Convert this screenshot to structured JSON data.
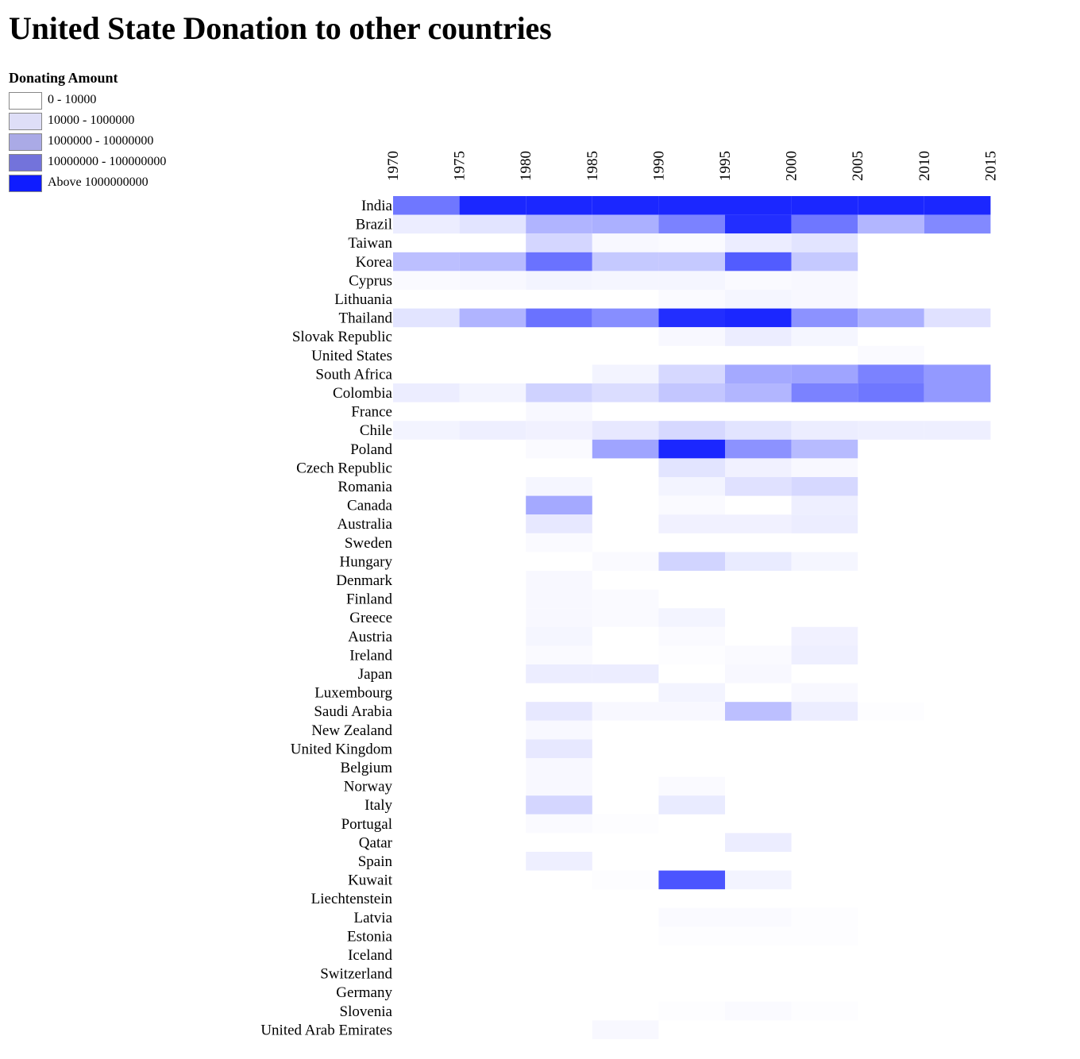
{
  "title": "United State Donation to other countries",
  "legend": {
    "title": "Donating Amount",
    "items": [
      {
        "label": "0 - 10000",
        "color": "#ffffff"
      },
      {
        "label": "10000 - 1000000",
        "color": "#dedef7"
      },
      {
        "label": "1000000 - 10000000",
        "color": "#aaaae6"
      },
      {
        "label": "10000000 - 100000000",
        "color": "#7373db"
      },
      {
        "label": "Above 1000000000",
        "color": "#0f1cff"
      }
    ]
  },
  "chart_data": {
    "type": "heatmap",
    "title": "United State Donation to other countries",
    "columns": [
      "1970",
      "1975",
      "1980",
      "1985",
      "1990",
      "1995",
      "2000",
      "2005",
      "2010",
      "2015"
    ],
    "rows": [
      "India",
      "Brazil",
      "Taiwan",
      "Korea",
      "Cyprus",
      "Lithuania",
      "Thailand",
      "Slovak Republic",
      "United States",
      "South Africa",
      "Colombia",
      "France",
      "Chile",
      "Poland",
      "Czech Republic",
      "Romania",
      "Canada",
      "Australia",
      "Sweden",
      "Hungary",
      "Denmark",
      "Finland",
      "Greece",
      "Austria",
      "Ireland",
      "Japan",
      "Luxembourg",
      "Saudi Arabia",
      "New Zealand",
      "United Kingdom",
      "Belgium",
      "Norway",
      "Italy",
      "Portugal",
      "Qatar",
      "Spain",
      "Kuwait",
      "Liechtenstein",
      "Latvia",
      "Estonia",
      "Iceland",
      "Switzerland",
      "Germany",
      "Slovenia",
      "United Arab Emirates"
    ],
    "intensity_scale": "0 = white, 1 = #0f1cff (legend: Above 1000000000)",
    "intensity": [
      [
        0.6,
        0.95,
        0.95,
        0.95,
        0.95,
        0.95,
        0.95,
        0.95,
        0.95
      ],
      [
        0.08,
        0.12,
        0.33,
        0.35,
        0.55,
        0.92,
        0.6,
        0.32,
        0.52
      ],
      [
        0.0,
        0.0,
        0.18,
        0.03,
        0.02,
        0.08,
        0.12,
        0.0,
        0.0
      ],
      [
        0.28,
        0.3,
        0.62,
        0.24,
        0.24,
        0.72,
        0.24,
        0.0,
        0.0
      ],
      [
        0.02,
        0.03,
        0.05,
        0.04,
        0.04,
        0.02,
        0.03,
        0.0,
        0.0
      ],
      [
        0.0,
        0.0,
        0.0,
        0.0,
        0.02,
        0.04,
        0.03,
        0.0,
        0.0
      ],
      [
        0.12,
        0.33,
        0.62,
        0.5,
        0.92,
        0.95,
        0.48,
        0.35,
        0.13
      ],
      [
        0.0,
        0.0,
        0.0,
        0.0,
        0.03,
        0.08,
        0.04,
        0.0,
        0.0
      ],
      [
        0.0,
        0.0,
        0.0,
        0.0,
        0.0,
        0.0,
        0.0,
        0.02,
        0.0
      ],
      [
        0.0,
        0.0,
        0.0,
        0.05,
        0.17,
        0.38,
        0.4,
        0.55,
        0.45
      ],
      [
        0.08,
        0.05,
        0.2,
        0.15,
        0.25,
        0.32,
        0.55,
        0.6,
        0.45
      ],
      [
        0.0,
        0.0,
        0.03,
        0.0,
        0.0,
        0.0,
        0.0,
        0.0,
        0.0
      ],
      [
        0.05,
        0.07,
        0.06,
        0.1,
        0.17,
        0.12,
        0.08,
        0.07,
        0.07
      ],
      [
        0.0,
        0.0,
        0.02,
        0.4,
        0.95,
        0.48,
        0.3,
        0.0,
        0.0
      ],
      [
        0.0,
        0.0,
        0.0,
        0.0,
        0.12,
        0.06,
        0.03,
        0.0,
        0.0
      ],
      [
        0.0,
        0.0,
        0.04,
        0.0,
        0.05,
        0.13,
        0.17,
        0.0,
        0.0
      ],
      [
        0.0,
        0.0,
        0.38,
        0.0,
        0.02,
        0.0,
        0.07,
        0.0,
        0.0
      ],
      [
        0.0,
        0.0,
        0.1,
        0.0,
        0.06,
        0.06,
        0.08,
        0.0,
        0.0
      ],
      [
        0.0,
        0.0,
        0.02,
        0.0,
        0.0,
        0.0,
        0.0,
        0.0,
        0.0
      ],
      [
        0.0,
        0.0,
        0.0,
        0.02,
        0.19,
        0.09,
        0.04,
        0.0,
        0.0
      ],
      [
        0.0,
        0.0,
        0.03,
        0.0,
        0.0,
        0.0,
        0.0,
        0.0,
        0.0
      ],
      [
        0.0,
        0.0,
        0.03,
        0.02,
        0.0,
        0.0,
        0.0,
        0.0,
        0.0
      ],
      [
        0.0,
        0.0,
        0.03,
        0.02,
        0.05,
        0.0,
        0.0,
        0.0,
        0.0
      ],
      [
        0.0,
        0.0,
        0.04,
        0.0,
        0.02,
        0.0,
        0.06,
        0.0,
        0.0
      ],
      [
        0.0,
        0.0,
        0.02,
        0.0,
        0.01,
        0.02,
        0.07,
        0.0,
        0.0
      ],
      [
        0.0,
        0.0,
        0.08,
        0.08,
        0.0,
        0.03,
        0.0,
        0.0,
        0.0
      ],
      [
        0.0,
        0.0,
        0.0,
        0.0,
        0.05,
        0.0,
        0.03,
        0.0,
        0.0
      ],
      [
        0.0,
        0.0,
        0.1,
        0.03,
        0.03,
        0.28,
        0.08,
        0.01,
        0.0
      ],
      [
        0.0,
        0.0,
        0.03,
        0.0,
        0.0,
        0.0,
        0.0,
        0.0,
        0.0
      ],
      [
        0.0,
        0.0,
        0.1,
        0.0,
        0.0,
        0.0,
        0.0,
        0.0,
        0.0
      ],
      [
        0.0,
        0.0,
        0.03,
        0.0,
        0.0,
        0.0,
        0.0,
        0.0,
        0.0
      ],
      [
        0.0,
        0.0,
        0.03,
        0.0,
        0.02,
        0.0,
        0.0,
        0.0,
        0.0
      ],
      [
        0.0,
        0.0,
        0.18,
        0.0,
        0.09,
        0.0,
        0.0,
        0.0,
        0.0
      ],
      [
        0.0,
        0.0,
        0.02,
        0.01,
        0.0,
        0.0,
        0.0,
        0.0,
        0.0
      ],
      [
        0.0,
        0.0,
        0.0,
        0.0,
        0.0,
        0.08,
        0.0,
        0.0,
        0.0
      ],
      [
        0.0,
        0.0,
        0.07,
        0.0,
        0.0,
        0.0,
        0.0,
        0.0,
        0.0
      ],
      [
        0.0,
        0.0,
        0.0,
        0.01,
        0.75,
        0.05,
        0.0,
        0.0,
        0.0
      ],
      [
        0.0,
        0.0,
        0.0,
        0.0,
        0.0,
        0.0,
        0.0,
        0.0,
        0.0
      ],
      [
        0.0,
        0.0,
        0.0,
        0.0,
        0.02,
        0.02,
        0.01,
        0.0,
        0.0
      ],
      [
        0.0,
        0.0,
        0.0,
        0.0,
        0.01,
        0.01,
        0.01,
        0.0,
        0.0
      ],
      [
        0.0,
        0.0,
        0.0,
        0.0,
        0.0,
        0.0,
        0.0,
        0.0,
        0.0
      ],
      [
        0.0,
        0.0,
        0.0,
        0.0,
        0.0,
        0.0,
        0.0,
        0.0,
        0.0
      ],
      [
        0.0,
        0.0,
        0.0,
        0.0,
        0.0,
        0.0,
        0.0,
        0.0,
        0.0
      ],
      [
        0.0,
        0.0,
        0.0,
        0.0,
        0.01,
        0.02,
        0.01,
        0.0,
        0.0
      ],
      [
        0.0,
        0.0,
        0.0,
        0.03,
        0.0,
        0.0,
        0.0,
        0.0,
        0.0
      ]
    ]
  }
}
